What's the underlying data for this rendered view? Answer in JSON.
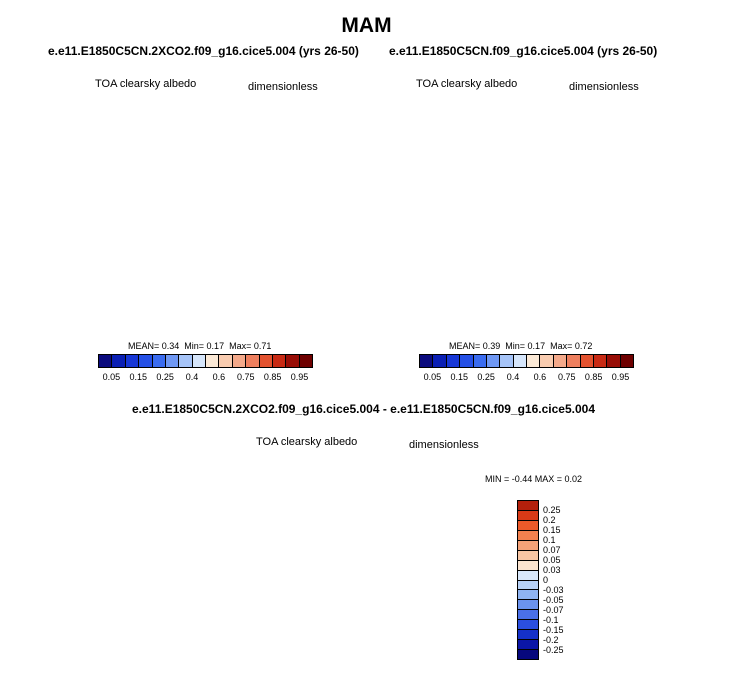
{
  "title": "MAM",
  "panels": [
    {
      "title": "e.e11.E1850C5CN.2XCO2.f09_g16.cice5.004 (yrs 26-50)",
      "left_label": "TOA clearsky albedo",
      "right_label": "dimensionless",
      "stats": {
        "mean": "MEAN=  0.34",
        "min": "Min=  0.17",
        "max": "Max=  0.71"
      }
    },
    {
      "title": "e.e11.E1850C5CN.f09_g16.cice5.004 (yrs 26-50)",
      "left_label": "TOA clearsky albedo",
      "right_label": "dimensionless",
      "stats": {
        "mean": "MEAN=  0.39",
        "min": "Min=  0.17",
        "max": "Max=  0.72"
      }
    },
    {
      "title": "e.e11.E1850C5CN.2XCO2.f09_g16.cice5.004 - e.e11.E1850C5CN.f09_g16.cice5.004",
      "left_label": "TOA clearsky albedo",
      "right_label": "dimensionless",
      "stats": {
        "minmax": "MIN =  -0.44 MAX =  0.02"
      }
    }
  ],
  "colorbar_abs": {
    "colors": [
      "#0b0b7e",
      "#0a1fb4",
      "#1737d6",
      "#2550e6",
      "#3a6cf0",
      "#6f98f4",
      "#a6c4f8",
      "#d6e6fb",
      "#fbe9d6",
      "#f9ccb0",
      "#f4a98a",
      "#ee7f5e",
      "#e3522f",
      "#c82a14",
      "#980d06",
      "#6e0000"
    ],
    "tick_labels": [
      "0.05",
      "0.15",
      "0.25",
      "0.4",
      "0.6",
      "0.75",
      "0.85",
      "0.95"
    ],
    "tick_positions": [
      1,
      3,
      5,
      7,
      9,
      11,
      13,
      15
    ]
  },
  "colorbar_diff": {
    "colors": [
      "#b3200c",
      "#d83a17",
      "#ec5a2a",
      "#f3814f",
      "#f5a278",
      "#f8c6a4",
      "#fbe4cf",
      "#d9e8fb",
      "#b8d2f7",
      "#8fb4f2",
      "#6b93ee",
      "#4a70e8",
      "#2b4fe0",
      "#1531c9",
      "#0b16a6",
      "#07087d"
    ],
    "tick_labels": [
      "0.25",
      "0.2",
      "0.15",
      "0.1",
      "0.07",
      "0.05",
      "0.03",
      "0",
      "-0.03",
      "-0.05",
      "-0.07",
      "-0.1",
      "-0.15",
      "-0.2",
      "-0.25"
    ]
  }
}
